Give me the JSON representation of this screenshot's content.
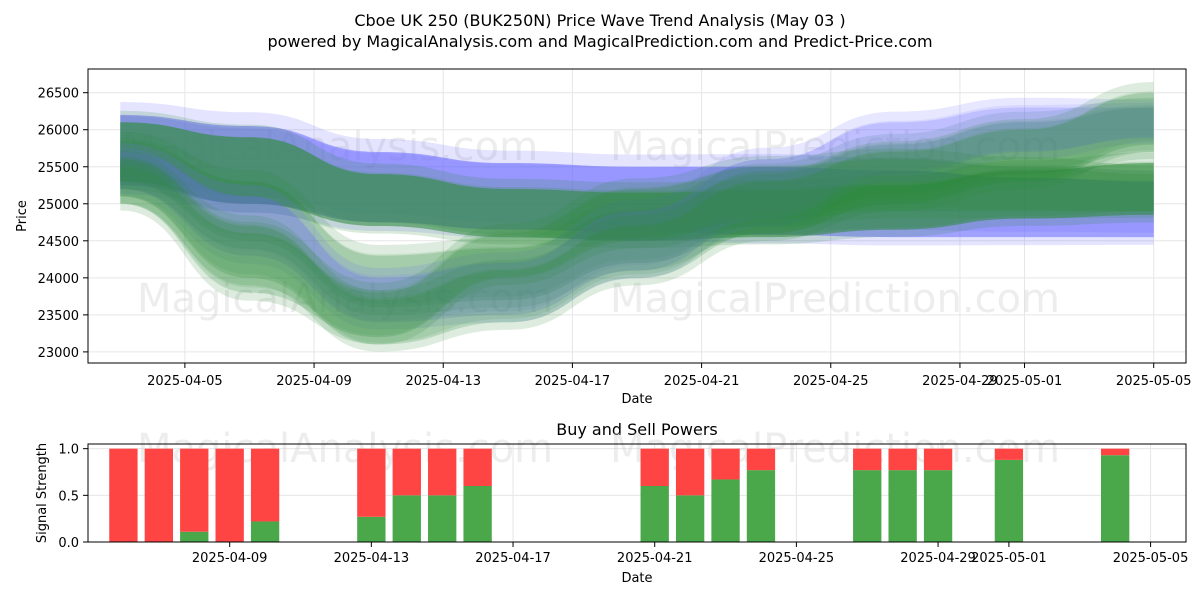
{
  "title_line1": "Cboe UK 250 (BUK250N) Price Wave Trend Analysis (May 03 )",
  "title_line2": "powered by MagicalAnalysis.com and MagicalPrediction.com and Predict-Price.com",
  "watermark_1": "MagicalAnalysis.com",
  "watermark_2": "MagicalPrediction.com",
  "colors": {
    "buy": "#4aa84a",
    "sell": "#ff4444",
    "wave_green": "#2e8b3a",
    "wave_blue": "#6b6bff"
  },
  "chart_data": [
    {
      "type": "area",
      "name": "price-wave",
      "xlabel": "Date",
      "ylabel": "Price",
      "x_ticks": [
        "2025-04-05",
        "2025-04-09",
        "2025-04-13",
        "2025-04-17",
        "2025-04-21",
        "2025-04-25",
        "2025-04-29",
        "2025-05-01",
        "2025-05-05"
      ],
      "y_ticks": [
        23000,
        23500,
        24000,
        24500,
        25000,
        25500,
        26000,
        26500
      ],
      "xlim": [
        "2025-04-02",
        "2025-05-06"
      ],
      "ylim": [
        22850,
        26820
      ],
      "grid": true,
      "band_dates": [
        "2025-04-03",
        "2025-04-07",
        "2025-04-11",
        "2025-04-15",
        "2025-04-19",
        "2025-04-23",
        "2025-04-27",
        "2025-05-01",
        "2025-05-05"
      ],
      "bands": [
        {
          "color": "blue",
          "upper": [
            26200,
            26050,
            25700,
            25550,
            25500,
            25500,
            25450,
            25350,
            25300
          ],
          "lower": [
            25250,
            25000,
            24750,
            24650,
            24620,
            24580,
            24550,
            24550,
            24550
          ]
        },
        {
          "color": "green",
          "upper": [
            26100,
            25900,
            25400,
            25200,
            25150,
            25180,
            25250,
            25450,
            25550
          ],
          "lower": [
            25300,
            25000,
            24700,
            24550,
            24500,
            24550,
            24650,
            24800,
            24850
          ]
        },
        {
          "color": "green",
          "upper": [
            25850,
            25300,
            24300,
            24400,
            24900,
            25400,
            25800,
            26100,
            26300
          ],
          "lower": [
            25300,
            24500,
            23600,
            23700,
            24200,
            24700,
            25100,
            25400,
            25700
          ]
        },
        {
          "color": "blue",
          "upper": [
            25700,
            25100,
            24000,
            24200,
            24900,
            25600,
            26100,
            26300,
            26300
          ],
          "lower": [
            25200,
            24300,
            23400,
            23500,
            24100,
            24800,
            25400,
            25700,
            25900
          ]
        },
        {
          "color": "green",
          "upper": [
            25600,
            24700,
            23700,
            24100,
            24700,
            25300,
            25700,
            26000,
            26500
          ],
          "lower": [
            25100,
            24000,
            23100,
            23400,
            24000,
            24600,
            25000,
            25300,
            25800
          ]
        },
        {
          "color": "green",
          "upper": [
            25500,
            24600,
            23800,
            24600,
            25200,
            25500,
            25600,
            25500,
            25400
          ],
          "lower": [
            25000,
            23800,
            23200,
            24000,
            24500,
            24800,
            24900,
            24900,
            24900
          ]
        }
      ]
    },
    {
      "type": "bar",
      "name": "buy-sell-powers",
      "title": "Buy and Sell Powers",
      "xlabel": "Date",
      "ylabel": "Signal Strength",
      "x_ticks": [
        "2025-04-09",
        "2025-04-13",
        "2025-04-17",
        "2025-04-21",
        "2025-04-25",
        "2025-04-29",
        "2025-05-01",
        "2025-05-05"
      ],
      "y_ticks": [
        0.0,
        0.5,
        1.0
      ],
      "xlim": [
        "2025-04-05",
        "2025-05-06"
      ],
      "ylim": [
        0,
        1.05
      ],
      "grid": true,
      "dates": [
        "2025-04-06",
        "2025-04-07",
        "2025-04-08",
        "2025-04-09",
        "2025-04-10",
        "2025-04-13",
        "2025-04-14",
        "2025-04-15",
        "2025-04-16",
        "2025-04-21",
        "2025-04-22",
        "2025-04-23",
        "2025-04-24",
        "2025-04-27",
        "2025-04-28",
        "2025-04-29",
        "2025-05-01",
        "2025-05-04"
      ],
      "series": [
        {
          "name": "Buy",
          "values": [
            0.0,
            0.0,
            0.11,
            0.0,
            0.22,
            0.27,
            0.5,
            0.5,
            0.6,
            0.6,
            0.5,
            0.67,
            0.77,
            0.77,
            0.77,
            0.77,
            0.88,
            0.93
          ]
        },
        {
          "name": "Sell",
          "values": [
            1.0,
            1.0,
            0.89,
            1.0,
            0.78,
            0.73,
            0.5,
            0.5,
            0.4,
            0.4,
            0.5,
            0.33,
            0.23,
            0.23,
            0.23,
            0.23,
            0.12,
            0.07
          ]
        }
      ]
    }
  ]
}
